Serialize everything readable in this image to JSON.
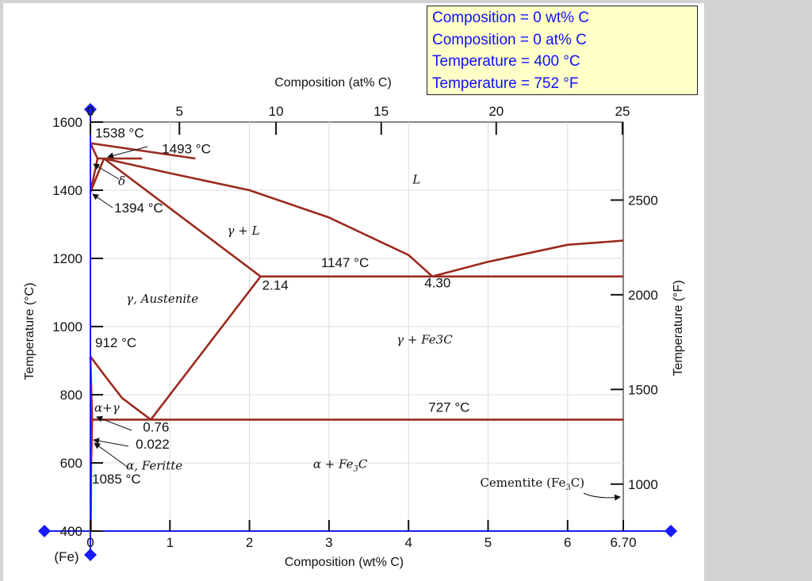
{
  "readout": {
    "lines": [
      "Composition = 0 wt% C",
      "Composition = 0 at% C",
      "Temperature = 400 °C",
      "Temperature = 752 °F"
    ]
  },
  "colors": {
    "curve": "#9b2a1f",
    "axis_blue": "#1a1aff",
    "readout_bg": "#ffffc8",
    "readout_text": "#1010ff",
    "page_bg": "#d3d3d3"
  },
  "chart_data": {
    "type": "line",
    "title": "",
    "xlabel": "Composition (wt% C)",
    "ylabel": "Temperature (°C)",
    "top_xlabel": "Composition (at% C)",
    "right_ylabel": "Temperature (°F)",
    "xlim": [
      0,
      6.7
    ],
    "ylim": [
      400,
      1600
    ],
    "x_ticks": [
      "0",
      "1",
      "2",
      "3",
      "4",
      "5",
      "6",
      "6.70"
    ],
    "x_tick_values": [
      0,
      1,
      2,
      3,
      4,
      5,
      6,
      6.7
    ],
    "y_ticks": [
      "400",
      "600",
      "800",
      "1000",
      "1200",
      "1400",
      "1600"
    ],
    "y_tick_values": [
      400,
      600,
      800,
      1000,
      1200,
      1400,
      1600
    ],
    "top_ticks": [
      "0",
      "5",
      "10",
      "15",
      "20",
      "25"
    ],
    "top_tick_values": [
      0,
      5,
      10,
      15,
      20,
      25
    ],
    "right_ticks": [
      "1000",
      "1500",
      "2000",
      "2500"
    ],
    "right_tick_values": [
      1000,
      1500,
      2000,
      2500
    ],
    "origin_label": "(Fe)",
    "series": [
      {
        "values": [
          [
            0,
            1538
          ],
          [
            1.32,
            1493
          ]
        ]
      },
      {
        "values": [
          [
            0.09,
            1493
          ],
          [
            0.65,
            1493
          ]
        ]
      },
      {
        "values": [
          [
            0,
            1538
          ],
          [
            0.09,
            1493
          ],
          [
            0,
            1394
          ]
        ]
      },
      {
        "values": [
          [
            0.17,
            1493
          ],
          [
            0,
            1394
          ]
        ]
      },
      {
        "values": [
          [
            0.17,
            1493
          ],
          [
            2.14,
            1147
          ]
        ]
      },
      {
        "values": [
          [
            0.17,
            1493
          ],
          [
            1.0,
            1450
          ],
          [
            2.0,
            1400
          ],
          [
            3.0,
            1320
          ],
          [
            4.0,
            1210
          ],
          [
            4.3,
            1147
          ]
        ]
      },
      {
        "values": [
          [
            2.14,
            1147
          ],
          [
            6.7,
            1147
          ]
        ]
      },
      {
        "values": [
          [
            4.3,
            1147
          ],
          [
            5.0,
            1190
          ],
          [
            6.0,
            1240
          ],
          [
            6.7,
            1252
          ]
        ]
      },
      {
        "values": [
          [
            2.14,
            1147
          ],
          [
            0.76,
            727
          ]
        ]
      },
      {
        "values": [
          [
            0,
            912
          ],
          [
            0.2,
            850
          ],
          [
            0.4,
            790
          ],
          [
            0.76,
            727
          ]
        ]
      },
      {
        "values": [
          [
            0.022,
            727
          ],
          [
            6.7,
            727
          ]
        ]
      },
      {
        "values": [
          [
            0,
            912
          ],
          [
            0.022,
            727
          ],
          [
            0.01,
            600
          ],
          [
            0.005,
            400
          ]
        ]
      }
    ],
    "annotations": [
      {
        "text": "1538 °C",
        "x": 0.06,
        "y": 1555
      },
      {
        "text": "1493 °C",
        "x": 0.9,
        "y": 1508
      },
      {
        "text": "1394 °C",
        "x": 0.3,
        "y": 1335
      },
      {
        "text": "1147 °C",
        "x": 2.9,
        "y": 1175
      },
      {
        "text": "2.14",
        "x": 2.16,
        "y": 1108
      },
      {
        "text": "4.30",
        "x": 4.2,
        "y": 1115
      },
      {
        "text": "912 °C",
        "x": 0.06,
        "y": 940
      },
      {
        "text": "727 °C",
        "x": 4.25,
        "y": 750
      },
      {
        "text": "0.76",
        "x": 0.66,
        "y": 692
      },
      {
        "text": "0.022",
        "x": 0.57,
        "y": 642
      },
      {
        "text": "1085 °C",
        "x": 0.02,
        "y": 540
      }
    ],
    "phase_labels": [
      {
        "text": "L",
        "x": 4.05,
        "y": 1420
      },
      {
        "text": "δ",
        "x": 0.35,
        "y": 1415
      },
      {
        "text": "γ + L",
        "x": 1.72,
        "y": 1270
      },
      {
        "text": "γ, Austenite",
        "x": 0.45,
        "y": 1070
      },
      {
        "text": "γ + Fe3C",
        "x": 3.85,
        "y": 950
      },
      {
        "text": "α+γ",
        "x": 0.05,
        "y": 750
      },
      {
        "text": "α, Feritte",
        "x": 0.45,
        "y": 580
      },
      {
        "text": "α + Fe",
        "x": 2.8,
        "y": 585
      },
      {
        "text": "Cementite (Fe",
        "x": 4.9,
        "y": 530
      }
    ]
  }
}
